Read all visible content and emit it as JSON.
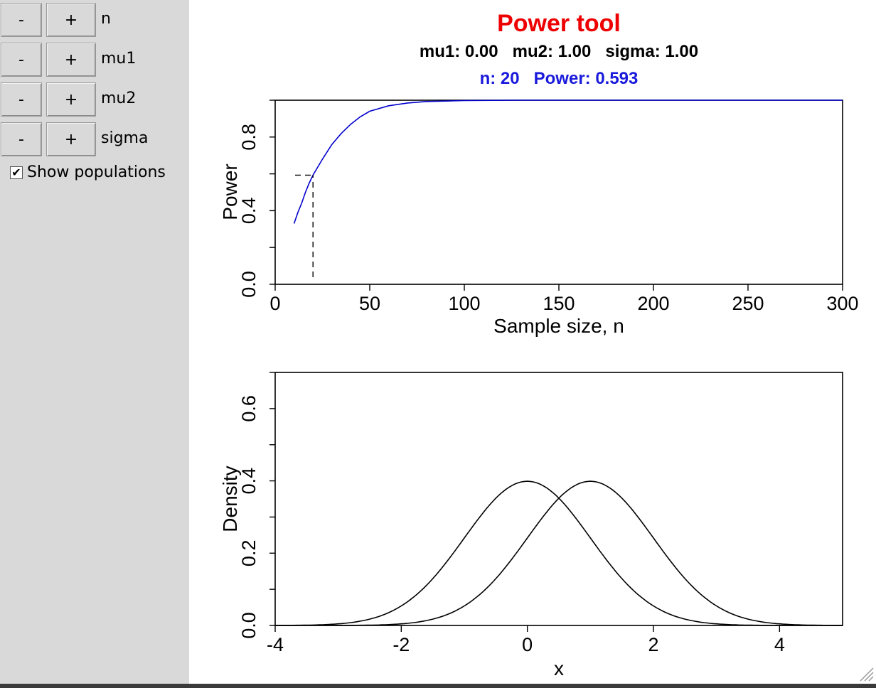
{
  "controls": [
    {
      "minus": "-",
      "plus": "+",
      "label": "n"
    },
    {
      "minus": "-",
      "plus": "+",
      "label": "mu1"
    },
    {
      "minus": "-",
      "plus": "+",
      "label": "mu2"
    },
    {
      "minus": "-",
      "plus": "+",
      "label": "sigma"
    }
  ],
  "show_populations": {
    "label": "Show populations",
    "checked": true,
    "check_glyph": "✔"
  },
  "header": {
    "title": "Power tool",
    "params": "mu1: 0.00   mu2: 1.00   sigma: 1.00",
    "result": "n: 20   Power: 0.593",
    "title_color": "#ee0000",
    "result_color": "#1a1adc"
  },
  "chart_data": [
    {
      "type": "line",
      "xlabel": "Sample size, n",
      "ylabel": "Power",
      "xlim": [
        0,
        300
      ],
      "ylim": [
        0,
        1
      ],
      "x_ticks": [
        "0",
        "50",
        "100",
        "150",
        "200",
        "250",
        "300"
      ],
      "y_ticks": [
        "0.0",
        "0.4",
        "0.8"
      ],
      "series": [
        {
          "color": "#0000cc",
          "x": [
            10,
            12,
            14,
            16,
            18,
            20,
            25,
            30,
            35,
            40,
            45,
            50,
            60,
            70,
            80,
            100,
            130,
            160,
            200,
            250,
            300
          ],
          "y": [
            0.33,
            0.39,
            0.44,
            0.5,
            0.55,
            0.593,
            0.68,
            0.76,
            0.82,
            0.87,
            0.91,
            0.94,
            0.97,
            0.985,
            0.993,
            0.998,
            1.0,
            1.0,
            1.0,
            1.0,
            1.0
          ]
        }
      ],
      "marker": {
        "n": 20,
        "power": 0.593,
        "style": "dashed"
      }
    },
    {
      "type": "line",
      "xlabel": "x",
      "ylabel": "Density",
      "xlim": [
        -4,
        5
      ],
      "ylim": [
        0,
        0.7
      ],
      "x_ticks": [
        "-4",
        "-2",
        "0",
        "2",
        "4"
      ],
      "y_ticks": [
        "0.0",
        "0.2",
        "0.4",
        "0.6"
      ],
      "series": [
        {
          "color": "#000000",
          "mean": 0,
          "sd": 1
        },
        {
          "color": "#000000",
          "mean": 1,
          "sd": 1
        }
      ]
    }
  ]
}
